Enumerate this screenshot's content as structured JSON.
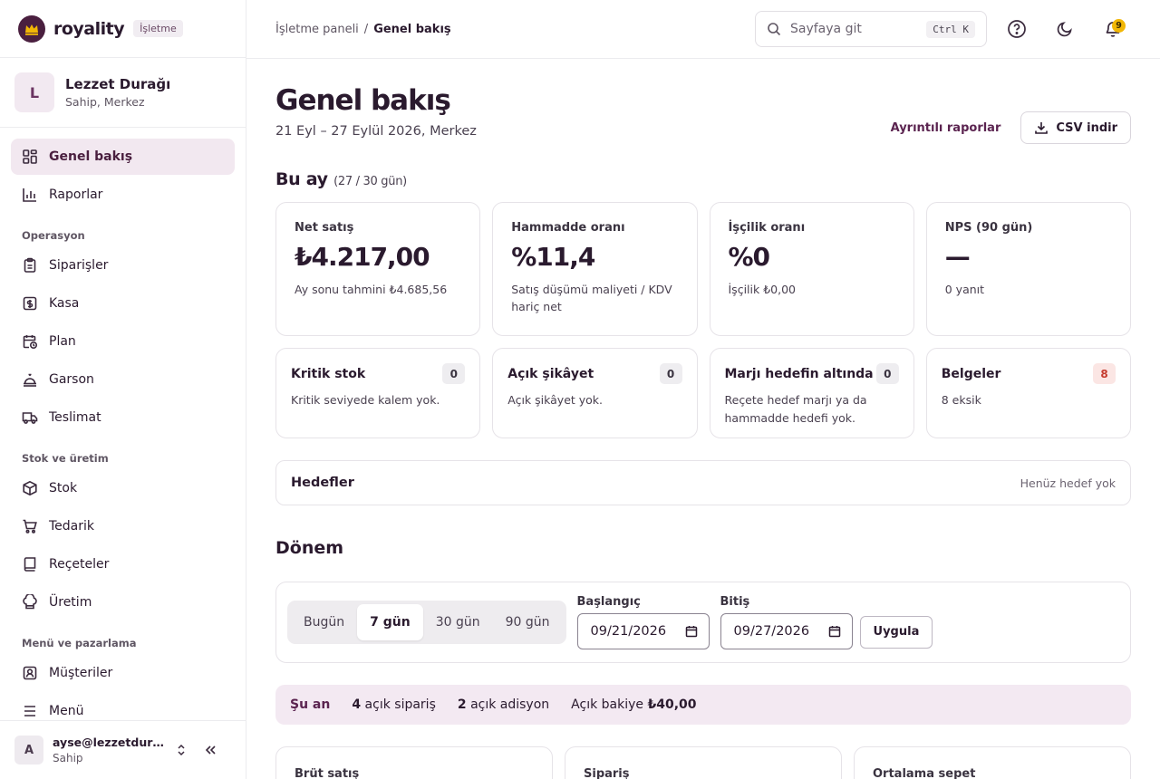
{
  "brand": {
    "name": "royality",
    "badge": "İşletme",
    "accent": "#4a1f3f",
    "crown_color": "#f2b705"
  },
  "org": {
    "initial": "L",
    "name": "Lezzet Durağı",
    "role": "Sahip, Merkez"
  },
  "nav": {
    "top": [
      {
        "label": "Genel bakış",
        "icon": "grid-icon",
        "active": true
      },
      {
        "label": "Raporlar",
        "icon": "bar-chart-icon"
      }
    ],
    "sections": [
      {
        "title": "Operasyon",
        "items": [
          "Siparişler",
          "Kasa",
          "Plan",
          "Garson",
          "Teslimat"
        ]
      },
      {
        "title": "Stok ve üretim",
        "items": [
          "Stok",
          "Tedarik",
          "Reçeteler",
          "Üretim"
        ]
      },
      {
        "title": "Menü ve pazarlama",
        "items": [
          "Müşteriler",
          "Menü"
        ]
      }
    ]
  },
  "user": {
    "initial": "A",
    "email": "ayse@lezzetduragi.com",
    "role": "Sahip"
  },
  "topbar": {
    "breadcrumb_root": "İşletme paneli",
    "breadcrumb_sep": "/",
    "breadcrumb_current": "Genel bakış",
    "search_placeholder": "Sayfaya git",
    "search_shortcut": "Ctrl K",
    "notification_count": "9"
  },
  "header": {
    "title": "Genel bakış",
    "subtitle": "21 Eyl – 27 Eylül 2026, Merkez",
    "reports_link": "Ayrıntılı raporlar",
    "csv_button": "CSV indir"
  },
  "month": {
    "title": "Bu ay",
    "progress": "(27 / 30 gün)",
    "kpis": [
      {
        "label": "Net satış",
        "value": "₺4.217,00",
        "note": "Ay sonu tahmini ₺4.685,56"
      },
      {
        "label": "Hammadde oranı",
        "value": "%11,4",
        "note": "Satış düşümü maliyeti / KDV hariç net"
      },
      {
        "label": "İşçilik oranı",
        "value": "%0",
        "note": "İşçilik ₺0,00"
      },
      {
        "label": "NPS (90 gün)",
        "value": "—",
        "note": "0 yanıt"
      }
    ],
    "alerts": [
      {
        "title": "Kritik stok",
        "count": "0",
        "text": "Kritik seviyede kalem yok."
      },
      {
        "title": "Açık şikâyet",
        "count": "0",
        "text": "Açık şikâyet yok."
      },
      {
        "title": "Marjı hedefin altında",
        "count": "0",
        "text": "Reçete hedef marjı ya da hammadde hedefi yok."
      },
      {
        "title": "Belgeler",
        "count": "8",
        "text": "8 eksik",
        "warn": true
      }
    ]
  },
  "goals": {
    "title": "Hedefler",
    "empty": "Henüz hedef yok"
  },
  "period": {
    "title": "Dönem",
    "segments": [
      "Bugün",
      "7 gün",
      "30 gün",
      "90 gün"
    ],
    "active_segment": "7 gün",
    "start_label": "Başlangıç",
    "start_value": "09/21/2026",
    "end_label": "Bitiş",
    "end_value": "09/27/2026",
    "apply": "Uygula"
  },
  "now": {
    "label": "Şu an",
    "open_orders_count": "4",
    "open_orders_text": "açık sipariş",
    "open_tickets_count": "2",
    "open_tickets_text": "açık adisyon",
    "balance_label": "Açık bakiye",
    "balance_value": "₺40,00"
  },
  "bottom_cards": [
    "Brüt satış",
    "Sipariş",
    "Ortalama sepet"
  ]
}
